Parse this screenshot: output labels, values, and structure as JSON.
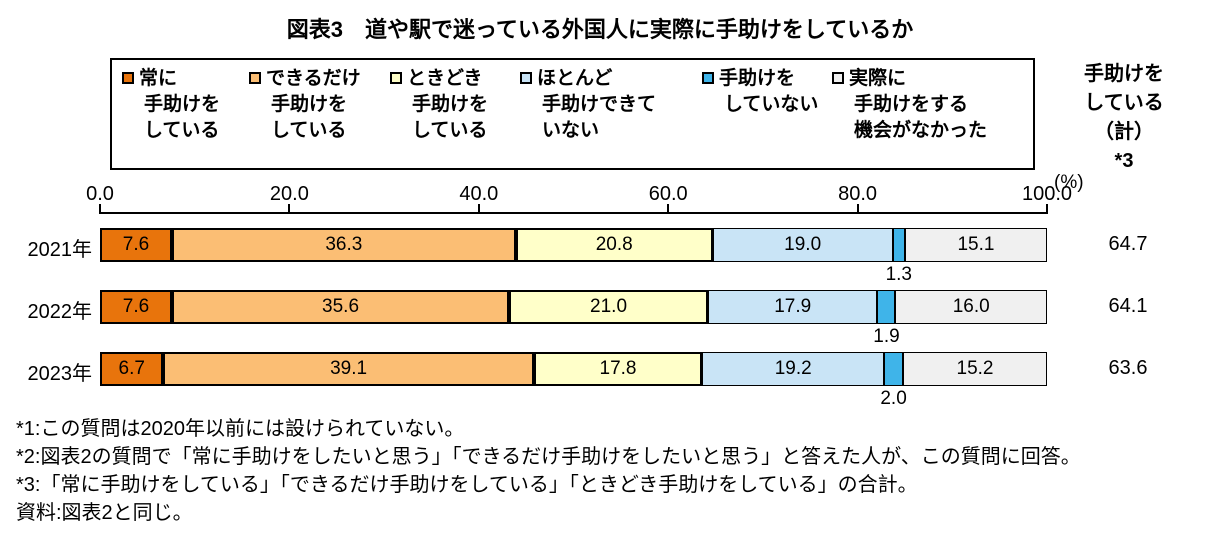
{
  "title": "図表3　道や駅で迷っている外国人に実際に手助けをしているか",
  "chart_data": {
    "type": "bar",
    "stacked": true,
    "orientation": "horizontal",
    "unit": "(%)",
    "xlim": [
      0,
      100
    ],
    "xticks": [
      0,
      20,
      40,
      60,
      80,
      100
    ],
    "xtick_labels": [
      "0.0",
      "20.0",
      "40.0",
      "60.0",
      "80.0",
      "100.0"
    ],
    "categories": [
      "2021年",
      "2022年",
      "2023年"
    ],
    "series": [
      {
        "name": "常に手助けをしている",
        "legend_lines": [
          "常に",
          "手助けを",
          "している"
        ],
        "color": "#E8740C",
        "border": "thick",
        "values": [
          7.6,
          7.6,
          6.7
        ]
      },
      {
        "name": "できるだけ手助けをしている",
        "legend_lines": [
          "できるだけ",
          "手助けを",
          "している"
        ],
        "color": "#FBBE74",
        "border": "thick",
        "values": [
          36.3,
          35.6,
          39.1
        ]
      },
      {
        "name": "ときどき手助けをしている",
        "legend_lines": [
          "ときどき",
          "手助けを",
          "している"
        ],
        "color": "#FFFFC9",
        "border": "thick",
        "values": [
          20.8,
          21.0,
          17.8
        ]
      },
      {
        "name": "ほとんど手助けできていない",
        "legend_lines": [
          "ほとんど",
          "手助けできて",
          "いない"
        ],
        "color": "#C9E4F6",
        "border": "thin",
        "values": [
          19.0,
          17.9,
          19.2
        ]
      },
      {
        "name": "手助けをしていない",
        "legend_lines": [
          "手助けを",
          "していない"
        ],
        "color": "#3FB4E9",
        "border": "thin",
        "values": [
          1.3,
          1.9,
          2.0
        ]
      },
      {
        "name": "実際に手助けをする機会がなかった",
        "legend_lines": [
          "実際に",
          "手助けをする",
          "機会がなかった"
        ],
        "color": "#F0F0F0",
        "border": "thin",
        "values": [
          15.1,
          16.0,
          15.2
        ]
      }
    ],
    "totals": {
      "header_lines": [
        "手助けを",
        "している",
        "（計）",
        "*3"
      ],
      "values": [
        64.7,
        64.1,
        63.6
      ]
    },
    "legend_position": "top",
    "grid": false
  },
  "footnotes": [
    "*1:この質問は2020年以前には設けられていない。",
    "*2:図表2の質問で「常に手助けをしたいと思う」「できるだけ手助けをしたいと思う」と答えた人が、この質問に回答。",
    "*3:「常に手助けをしている」「できるだけ手助けをしている」「ときどき手助けをしている」の合計。",
    "資料:図表2と同じ。"
  ]
}
